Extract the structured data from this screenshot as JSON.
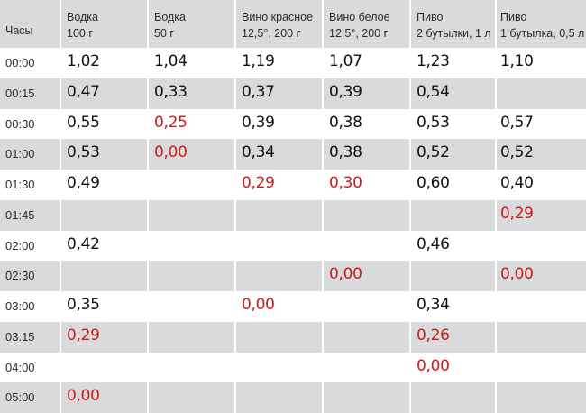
{
  "header": {
    "time_label": "Часы",
    "columns": [
      {
        "line1": "Водка",
        "line2": "100 г"
      },
      {
        "line1": "Водка",
        "line2": "50 г"
      },
      {
        "line1": "Вино красное",
        "line2": "12,5°, 200 г"
      },
      {
        "line1": "Вино белое",
        "line2": "12,5°, 200 г"
      },
      {
        "line1": "Пиво",
        "line2": "2 бутылки, 1 л"
      },
      {
        "line1": "Пиво",
        "line2": "1 бутылка, 0,5 л"
      }
    ]
  },
  "colors": {
    "highlight": "#cc1b1b",
    "normal": "#111111",
    "stripe": "#d9dadc"
  },
  "rows": [
    {
      "time": "00:00",
      "cells": [
        {
          "v": "1,02"
        },
        {
          "v": "1,04"
        },
        {
          "v": "1,19"
        },
        {
          "v": "1,07"
        },
        {
          "v": "1,23"
        },
        {
          "v": "1,10"
        }
      ]
    },
    {
      "time": "00:15",
      "cells": [
        {
          "v": "0,47"
        },
        {
          "v": "0,33"
        },
        {
          "v": "0,37"
        },
        {
          "v": "0,39"
        },
        {
          "v": "0,54"
        },
        {
          "v": ""
        }
      ]
    },
    {
      "time": "00:30",
      "cells": [
        {
          "v": "0,55"
        },
        {
          "v": "0,25",
          "red": true
        },
        {
          "v": "0,39"
        },
        {
          "v": "0,38"
        },
        {
          "v": "0,53"
        },
        {
          "v": "0,57"
        }
      ]
    },
    {
      "time": "01:00",
      "cells": [
        {
          "v": "0,53"
        },
        {
          "v": "0,00",
          "red": true
        },
        {
          "v": "0,34"
        },
        {
          "v": "0,38"
        },
        {
          "v": "0,52"
        },
        {
          "v": "0,52"
        }
      ]
    },
    {
      "time": "01:30",
      "cells": [
        {
          "v": "0,49"
        },
        {
          "v": ""
        },
        {
          "v": "0,29",
          "red": true
        },
        {
          "v": "0,30",
          "red": true
        },
        {
          "v": "0,60"
        },
        {
          "v": "0,40"
        }
      ]
    },
    {
      "time": "01:45",
      "cells": [
        {
          "v": ""
        },
        {
          "v": ""
        },
        {
          "v": ""
        },
        {
          "v": ""
        },
        {
          "v": ""
        },
        {
          "v": "0,29",
          "red": true
        }
      ]
    },
    {
      "time": "02:00",
      "cells": [
        {
          "v": "0,42"
        },
        {
          "v": ""
        },
        {
          "v": ""
        },
        {
          "v": ""
        },
        {
          "v": "0,46"
        },
        {
          "v": ""
        }
      ]
    },
    {
      "time": "02:30",
      "cells": [
        {
          "v": ""
        },
        {
          "v": ""
        },
        {
          "v": ""
        },
        {
          "v": "0,00",
          "red": true
        },
        {
          "v": ""
        },
        {
          "v": "0,00",
          "red": true
        }
      ]
    },
    {
      "time": "03:00",
      "cells": [
        {
          "v": "0,35"
        },
        {
          "v": ""
        },
        {
          "v": "0,00",
          "red": true
        },
        {
          "v": ""
        },
        {
          "v": "0,34"
        },
        {
          "v": ""
        }
      ]
    },
    {
      "time": "03:15",
      "cells": [
        {
          "v": "0,29",
          "red": true
        },
        {
          "v": ""
        },
        {
          "v": ""
        },
        {
          "v": ""
        },
        {
          "v": "0,26",
          "red": true
        },
        {
          "v": ""
        }
      ]
    },
    {
      "time": "04:00",
      "cells": [
        {
          "v": ""
        },
        {
          "v": ""
        },
        {
          "v": ""
        },
        {
          "v": ""
        },
        {
          "v": "0,00",
          "red": true
        },
        {
          "v": ""
        }
      ]
    },
    {
      "time": "05:00",
      "cells": [
        {
          "v": "0,00",
          "red": true
        },
        {
          "v": ""
        },
        {
          "v": ""
        },
        {
          "v": ""
        },
        {
          "v": ""
        },
        {
          "v": ""
        }
      ]
    }
  ]
}
